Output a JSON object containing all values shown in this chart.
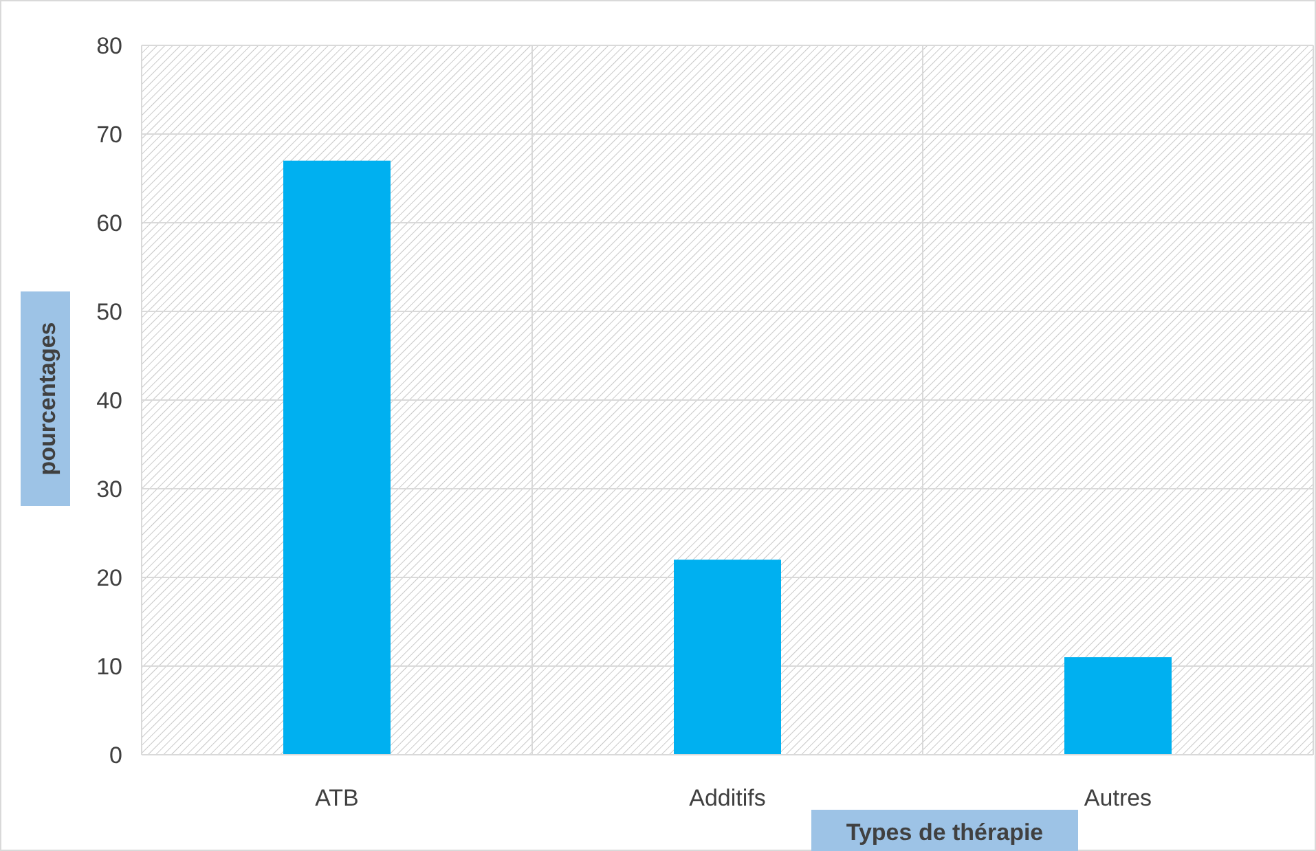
{
  "chart_data": {
    "type": "bar",
    "xlabel": "Types de thérapie",
    "ylabel": "pourcentages",
    "categories": [
      "ATB",
      "Additifs",
      "Autres"
    ],
    "values": [
      67,
      22,
      11
    ],
    "color": "#00b0f0",
    "ylim": [
      0,
      80
    ],
    "yticks": [
      0,
      10,
      20,
      30,
      40,
      50,
      60,
      70,
      80
    ],
    "grid": true
  }
}
